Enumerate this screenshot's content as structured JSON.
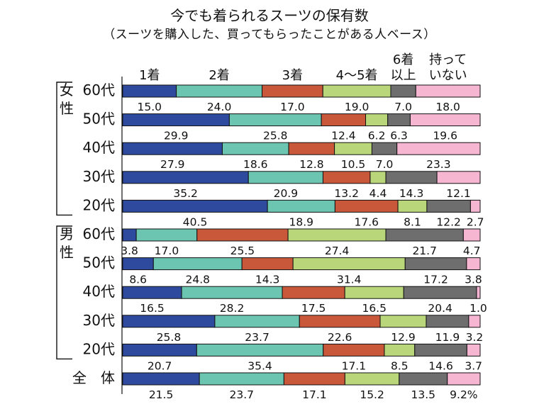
{
  "chart_data": {
    "type": "bar",
    "stacked": "100%",
    "orientation": "horizontal",
    "title": "今でも着られるスーツの保有数",
    "subtitle": "（スーツを購入した、買ってもらったことがある人ベース）",
    "series": [
      {
        "name": "1着",
        "color": "#2e4a9e"
      },
      {
        "name": "2着",
        "color": "#6cc5b0"
      },
      {
        "name": "3着",
        "color": "#c9573a"
      },
      {
        "name": "4～5着",
        "color": "#b9d77a"
      },
      {
        "name": "6着以上",
        "color": "#6e6e6e"
      },
      {
        "name": "持っていない",
        "color": "#f6b6d2"
      }
    ],
    "legend_labels": [
      {
        "lines": [
          "1着"
        ]
      },
      {
        "lines": [
          "2着"
        ]
      },
      {
        "lines": [
          "3着"
        ]
      },
      {
        "lines": [
          "4～5着"
        ]
      },
      {
        "lines": [
          "6着",
          "以上"
        ]
      },
      {
        "lines": [
          "持って",
          "いない"
        ]
      }
    ],
    "groups": [
      {
        "label": "女性",
        "rows": [
          0,
          4
        ]
      },
      {
        "label": "男性",
        "rows": [
          5,
          9
        ]
      }
    ],
    "rows": [
      {
        "label": "60代",
        "values": [
          15.0,
          24.0,
          17.0,
          19.0,
          7.0,
          18.0
        ],
        "labels": [
          "15.0",
          "24.0",
          "17.0",
          "19.0",
          "7.0",
          "18.0"
        ]
      },
      {
        "label": "50代",
        "values": [
          29.9,
          25.8,
          12.4,
          6.2,
          6.3,
          19.6
        ],
        "labels": [
          "29.9",
          "25.8",
          "12.4",
          "6.2",
          "6.3",
          "19.6"
        ]
      },
      {
        "label": "40代",
        "values": [
          27.9,
          18.6,
          12.8,
          10.5,
          7.0,
          23.3
        ],
        "labels": [
          "27.9",
          "18.6",
          "12.8",
          "10.5",
          "7.0",
          "23.3"
        ]
      },
      {
        "label": "30代",
        "values": [
          35.2,
          20.9,
          13.2,
          4.4,
          14.3,
          12.1
        ],
        "labels": [
          "35.2",
          "20.9",
          "13.2",
          "4.4",
          "14.3",
          "12.1"
        ]
      },
      {
        "label": "20代",
        "values": [
          40.5,
          18.9,
          17.6,
          8.1,
          12.2,
          2.7
        ],
        "labels": [
          "40.5",
          "18.9",
          "17.6",
          "8.1",
          "12.2",
          "2.7"
        ]
      },
      {
        "label": "60代",
        "values": [
          3.8,
          17.0,
          25.5,
          27.4,
          21.7,
          4.7
        ],
        "labels": [
          "3.8",
          "17.0",
          "25.5",
          "27.4",
          "21.7",
          "4.7"
        ]
      },
      {
        "label": "50代",
        "values": [
          8.6,
          24.8,
          14.3,
          31.4,
          17.2,
          3.8
        ],
        "labels": [
          "8.6",
          "24.8",
          "14.3",
          "31.4",
          "17.2",
          "3.8"
        ]
      },
      {
        "label": "40代",
        "values": [
          16.5,
          28.2,
          17.5,
          16.5,
          20.4,
          1.0
        ],
        "labels": [
          "16.5",
          "28.2",
          "17.5",
          "16.5",
          "20.4",
          "1.0"
        ]
      },
      {
        "label": "30代",
        "values": [
          25.8,
          23.7,
          22.6,
          12.9,
          11.9,
          3.2
        ],
        "labels": [
          "25.8",
          "23.7",
          "22.6",
          "12.9",
          "11.9",
          "3.2"
        ]
      },
      {
        "label": "20代",
        "values": [
          20.7,
          35.4,
          17.1,
          8.5,
          14.6,
          3.7
        ],
        "labels": [
          "20.7",
          "35.4",
          "17.1",
          "8.5",
          "14.6",
          "3.7"
        ]
      },
      {
        "label": "全　体",
        "values": [
          21.5,
          23.7,
          17.1,
          15.2,
          13.5,
          9.2
        ],
        "labels": [
          "21.5",
          "23.7",
          "17.1",
          "15.2",
          "13.5",
          "9.2%"
        ]
      }
    ]
  }
}
